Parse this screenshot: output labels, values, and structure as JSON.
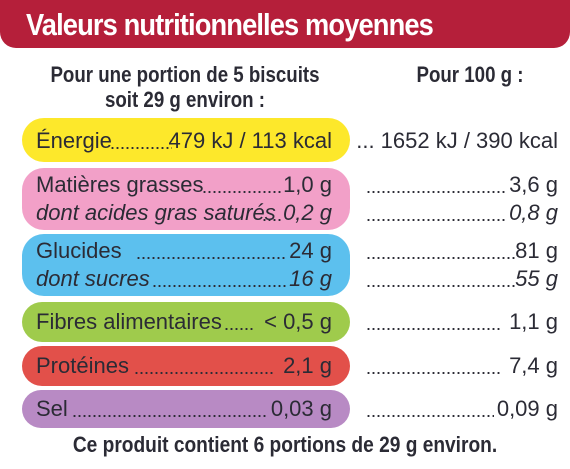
{
  "title": "Valeurs nutritionnelles moyennes",
  "columns": {
    "per_portion_line1": "Pour une portion de 5 biscuits",
    "per_portion_line2": "soit 29 g environ :",
    "per_100g": "Pour 100 g :"
  },
  "colors": {
    "header": "#b51f3a",
    "energie": "#fde82b",
    "matieres": "#f2a0c8",
    "glucides": "#5cc0ee",
    "fibres": "#9fcb4c",
    "proteines": "#e2504a",
    "sel": "#b88ac4"
  },
  "rows": {
    "energie": {
      "label": "Énergie",
      "value": "479 kJ / 113 kcal",
      "value_100": "... 1652 kJ / 390 kcal"
    },
    "matieres": {
      "label": "Matières grasses",
      "value": "1,0 g",
      "value_100": "3,6 g"
    },
    "satures": {
      "label": "dont acides gras saturés",
      "value": "0,2 g",
      "value_100": "0,8 g"
    },
    "glucides": {
      "label": "Glucides",
      "value": "24 g",
      "value_100": "81 g"
    },
    "sucres": {
      "label": "dont sucres",
      "value": "16 g",
      "value_100": "55 g"
    },
    "fibres": {
      "label": "Fibres alimentaires",
      "value": "< 0,5 g",
      "value_100": "1,1 g"
    },
    "proteines": {
      "label": "Protéines",
      "value": "2,1 g",
      "value_100": "7,4 g"
    },
    "sel": {
      "label": "Sel",
      "value": "0,03 g",
      "value_100": "0,09 g"
    }
  },
  "footer": "Ce produit contient 6 portions de 29 g environ."
}
